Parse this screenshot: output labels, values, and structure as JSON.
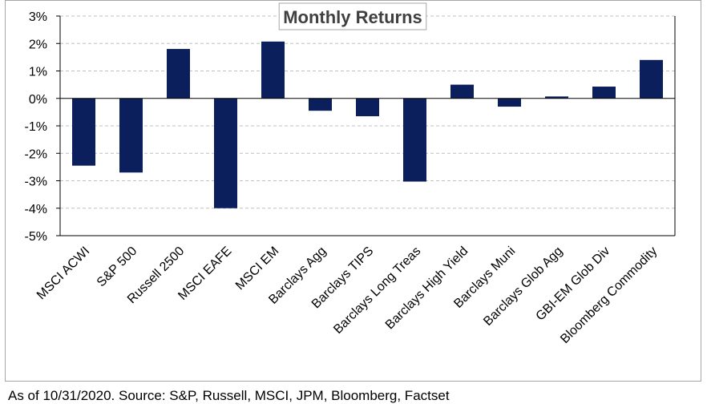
{
  "chart_data": {
    "type": "bar",
    "title": "Monthly Returns",
    "categories": [
      "MSCI ACWI",
      "S&P 500",
      "Russell 2500",
      "MSCI EAFE",
      "MSCI EM",
      "Barclays Agg",
      "Barclays TIPS",
      "Barclays Long Treas",
      "Barclays High Yield",
      "Barclays Muni",
      "Barclays Glob Agg",
      "GBI-EM Glob Div",
      "Bloomberg Commodity"
    ],
    "values": [
      -2.45,
      -2.7,
      1.8,
      -4.0,
      2.07,
      -0.45,
      -0.65,
      -3.03,
      0.5,
      -0.3,
      0.07,
      0.43,
      1.4
    ],
    "y_ticks": [
      "3%",
      "2%",
      "1%",
      "0%",
      "-1%",
      "-2%",
      "-3%",
      "-4%",
      "-5%"
    ],
    "ylim": [
      -5,
      3
    ],
    "grid": true,
    "bar_color": "#0b1f5c",
    "xlabel": "",
    "ylabel": ""
  },
  "footer": {
    "source": "As of 10/31/2020. Source: S&P, Russell, MSCI, JPM, Bloomberg, Factset"
  }
}
